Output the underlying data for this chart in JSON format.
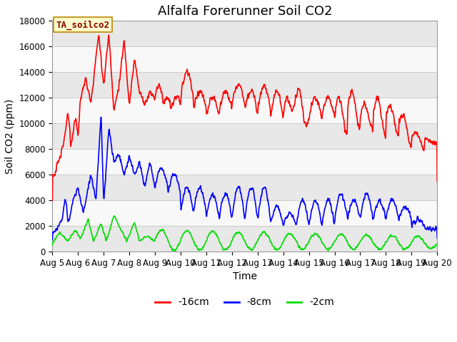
{
  "title": "Alfalfa Forerunner Soil CO2",
  "xlabel": "Time",
  "ylabel": "Soil CO2 (ppm)",
  "ylim": [
    0,
    18000
  ],
  "yticks": [
    0,
    2000,
    4000,
    6000,
    8000,
    10000,
    12000,
    14000,
    16000,
    18000
  ],
  "xtick_labels": [
    "Aug 5",
    "Aug 6",
    "Aug 7",
    "Aug 8",
    "Aug 9",
    "Aug 10",
    "Aug 11",
    "Aug 12",
    "Aug 13",
    "Aug 14",
    "Aug 15",
    "Aug 16",
    "Aug 17",
    "Aug 18",
    "Aug 19",
    "Aug 20"
  ],
  "line_colors": [
    "#ff0000",
    "#0000ff",
    "#00dd00"
  ],
  "legend_labels": [
    "-16cm",
    "-8cm",
    "-2cm"
  ],
  "annotation_text": "TA_soilco2",
  "annotation_bg": "#ffffcc",
  "annotation_border": "#bb8800",
  "background_color": "#ffffff",
  "plot_bg_color": "#ffffff",
  "band_color_light": "#e8e8e8",
  "band_color_white": "#f8f8f8",
  "title_fontsize": 13,
  "label_fontsize": 10,
  "tick_fontsize": 8.5,
  "legend_fontsize": 10
}
